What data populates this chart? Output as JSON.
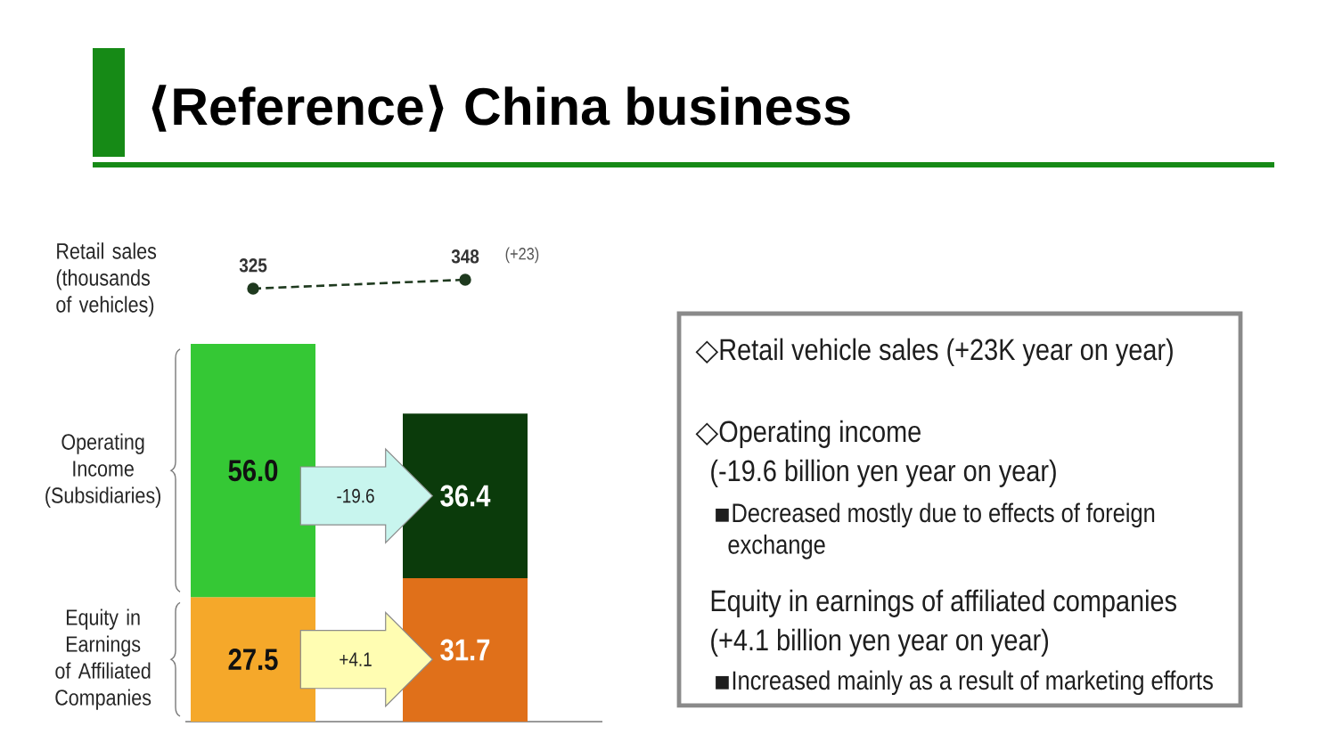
{
  "chart_data": [
    {
      "type": "line",
      "title": "⟨Reference⟩ China business",
      "ylabel": "Retail sales (thousands of vehicles)",
      "categories": [
        null,
        null
      ],
      "series": [
        {
          "color": "#1f3a1f",
          "values": [
            325,
            348
          ]
        }
      ],
      "tick_labels": false,
      "data_labels": true,
      "marker": "circle",
      "line_style": "dashed",
      "annotations": [
        "(+23)"
      ]
    },
    {
      "type": "bar",
      "stacked": true,
      "categories": [
        null,
        null
      ],
      "series": [
        {
          "name": "Equity in Earnings of Affiliated Companies",
          "colors": [
            "#f5a82a",
            "#e0701a"
          ],
          "values": [
            27.5,
            31.7
          ],
          "value_labels": [
            "27.5",
            "31.7"
          ]
        },
        {
          "name": "Operating Income (Subsidiaries)",
          "colors": [
            "#35c835",
            "#0b3b0b"
          ],
          "values": [
            56.0,
            36.4
          ],
          "value_labels": [
            "56.0",
            "36.4"
          ]
        }
      ],
      "tick_labels": false,
      "annotations": [
        "+4.1",
        "-19.6"
      ]
    },
    {
      "type": "other",
      "annotations": [
        "◇Retail vehicle sales (+23K year on year)",
        "◇Operating income",
        "(-19.6 billion yen year on year)",
        "▪Decreased mostly due to effects of foreign exchange",
        "Equity in earnings of affiliated companies",
        "(+4.1 billion yen year on year)",
        "▪Increased mainly as a result of marketing efforts"
      ]
    }
  ]
}
